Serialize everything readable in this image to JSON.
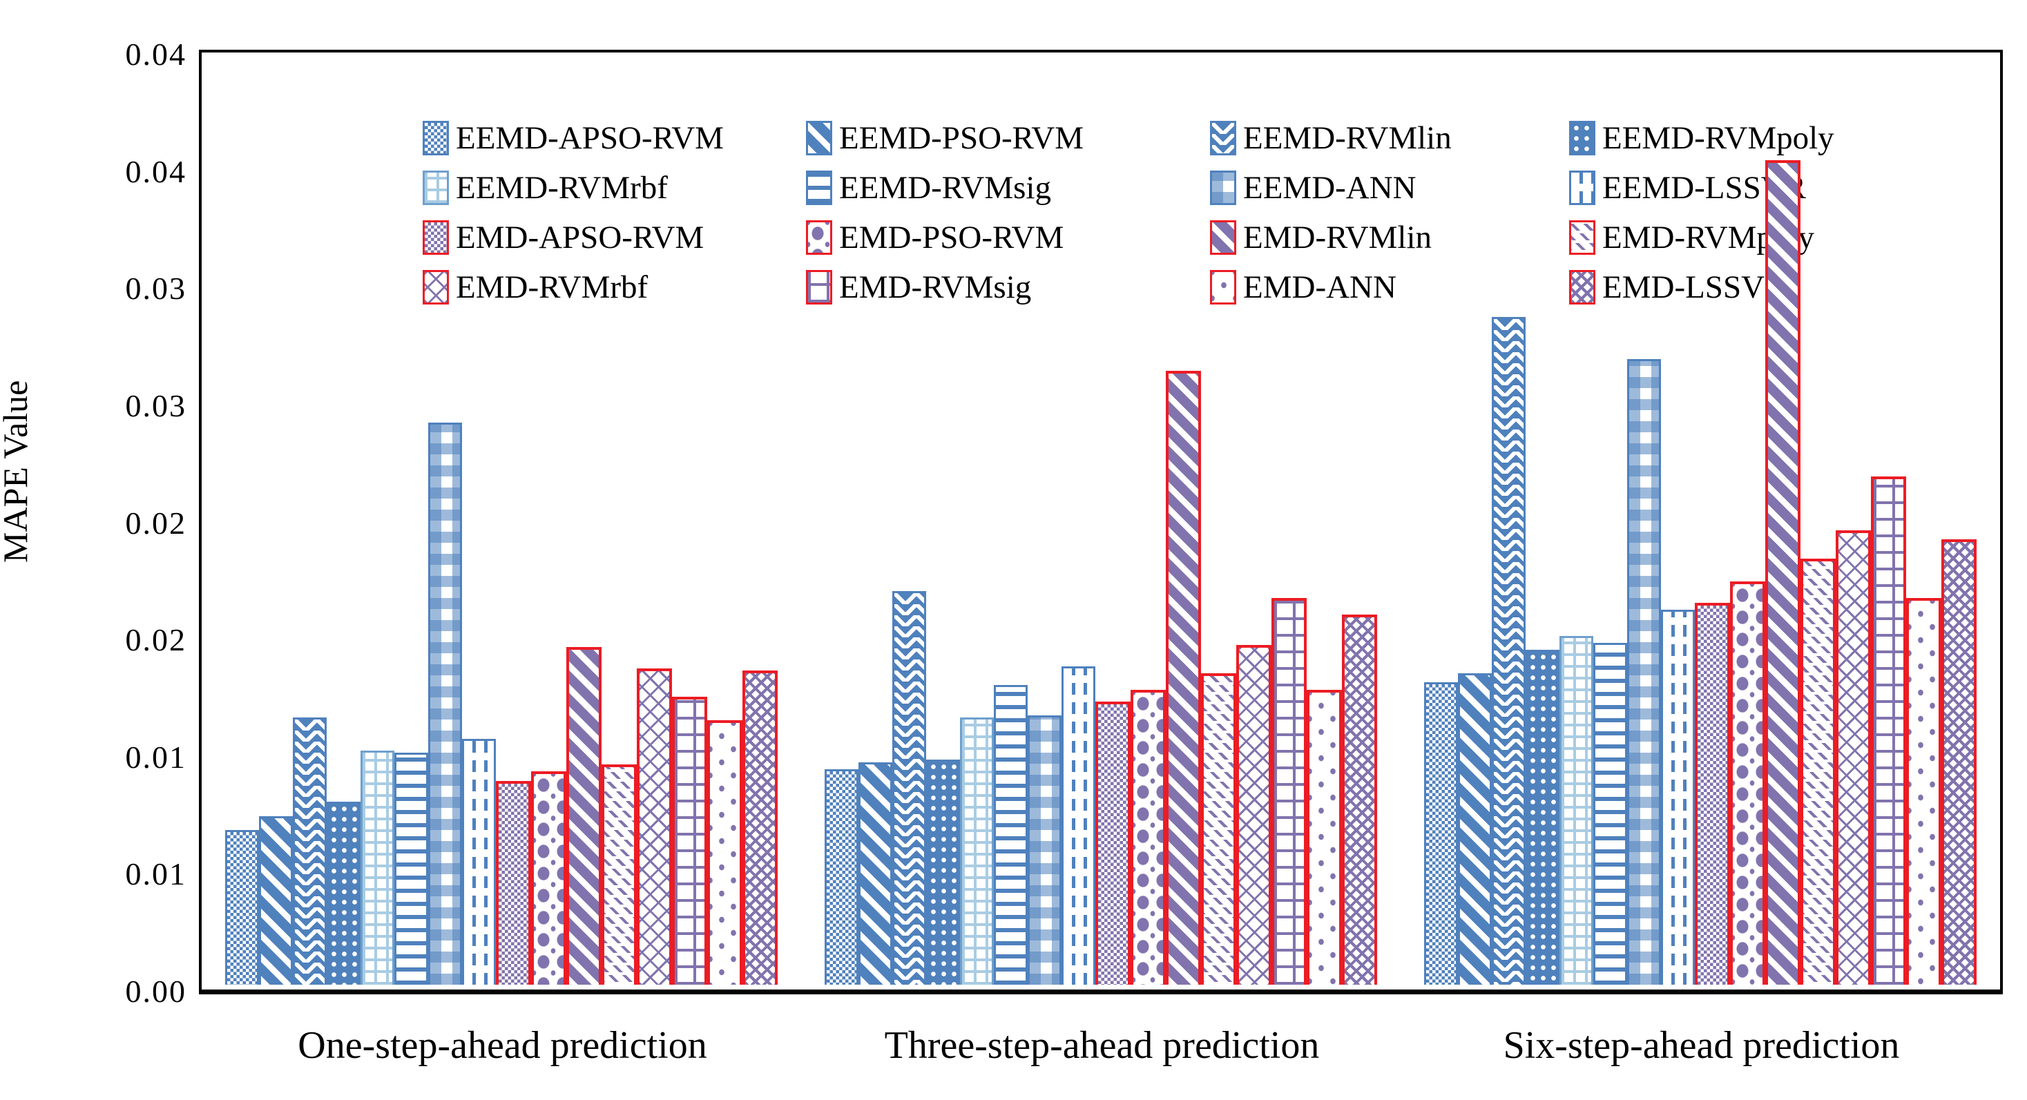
{
  "colors": {
    "blue": "#4F81BD",
    "light_blue_pattern": "#A9CCE3",
    "light_blue_border": "#6FA0CD",
    "red": "#EC1C24",
    "purple": "#8173AD",
    "axis": "#000000"
  },
  "chart_data": {
    "type": "bar",
    "title": "",
    "xlabel": "",
    "ylabel": "MAPE Value",
    "ylim": [
      0,
      0.04
    ],
    "ytick_step": 0.005,
    "ytick_labels_bottom_to_top": [
      "0.00",
      "0.01",
      "0.01",
      "0.02",
      "0.02",
      "0.03",
      "0.03",
      "0.04",
      "0.04"
    ],
    "grid": false,
    "legend_position": "top-left-inside, 4 columns x 4 rows",
    "categories": [
      "One-step-ahead prediction",
      "Three-step-ahead prediction",
      "Six-step-ahead prediction"
    ],
    "series": [
      {
        "name": "EEMD-APSO-RVM",
        "pattern": "check",
        "pattern_color": "#4F81BD",
        "border_color": "#4F81BD",
        "values": [
          0.0066,
          0.0092,
          0.0129
        ]
      },
      {
        "name": "EEMD-PSO-RVM",
        "pattern": "diag",
        "pattern_color": "#4F81BD",
        "border_color": "#4F81BD",
        "values": [
          0.0072,
          0.0095,
          0.0133
        ]
      },
      {
        "name": "EEMD-RVMlin",
        "pattern": "wave",
        "pattern_color": "#4F81BD",
        "border_color": "#4F81BD",
        "values": [
          0.0114,
          0.0168,
          0.0285
        ]
      },
      {
        "name": "EEMD-RVMpoly",
        "pattern": "dotsolid",
        "pattern_color": "#4F81BD",
        "border_color": "#4F81BD",
        "values": [
          0.0078,
          0.0096,
          0.0143
        ]
      },
      {
        "name": "EEMD-RVMrbf",
        "pattern": "grid",
        "pattern_color": "#A9CCE3",
        "border_color": "#6FA0CD",
        "values": [
          0.01,
          0.0114,
          0.0149
        ]
      },
      {
        "name": "EEMD-RVMsig",
        "pattern": "hlines",
        "pattern_color": "#4F81BD",
        "border_color": "#4F81BD",
        "values": [
          0.0099,
          0.0128,
          0.0146
        ]
      },
      {
        "name": "EEMD-ANN",
        "pattern": "gingham",
        "pattern_color": "#4F81BD",
        "border_color": "#4F81BD",
        "values": [
          0.024,
          0.0115,
          0.0267
        ]
      },
      {
        "name": "EEMD-LSSVR",
        "pattern": "vdash",
        "pattern_color": "#4F81BD",
        "border_color": "#4F81BD",
        "values": [
          0.0105,
          0.0136,
          0.016
        ]
      },
      {
        "name": "EMD-APSO-RVM",
        "pattern": "check",
        "pattern_color": "#8173AD",
        "border_color": "#EC1C24",
        "values": [
          0.0087,
          0.0121,
          0.0163
        ]
      },
      {
        "name": "EMD-PSO-RVM",
        "pattern": "diamonds",
        "pattern_color": "#8173AD",
        "border_color": "#EC1C24",
        "values": [
          0.0091,
          0.0126,
          0.0172
        ]
      },
      {
        "name": "EMD-RVMlin",
        "pattern": "diag",
        "pattern_color": "#8173AD",
        "border_color": "#EC1C24",
        "values": [
          0.0144,
          0.0262,
          0.0352
        ]
      },
      {
        "name": "EMD-RVMpoly",
        "pattern": "diagdash",
        "pattern_color": "#8173AD",
        "border_color": "#EC1C24",
        "values": [
          0.0094,
          0.0133,
          0.0182
        ]
      },
      {
        "name": "EMD-RVMrbf",
        "pattern": "lattice",
        "pattern_color": "#8173AD",
        "border_color": "#EC1C24",
        "values": [
          0.0135,
          0.0145,
          0.0194
        ]
      },
      {
        "name": "EMD-RVMsig",
        "pattern": "brick",
        "pattern_color": "#8173AD",
        "border_color": "#EC1C24",
        "values": [
          0.0123,
          0.0165,
          0.0217
        ]
      },
      {
        "name": "EMD-ANN",
        "pattern": "sparsedots",
        "pattern_color": "#8173AD",
        "border_color": "#EC1C24",
        "values": [
          0.0113,
          0.0126,
          0.0165
        ]
      },
      {
        "name": "EMD-LSSVR",
        "pattern": "herring",
        "pattern_color": "#8173AD",
        "border_color": "#EC1C24",
        "values": [
          0.0134,
          0.0158,
          0.019
        ]
      }
    ]
  }
}
